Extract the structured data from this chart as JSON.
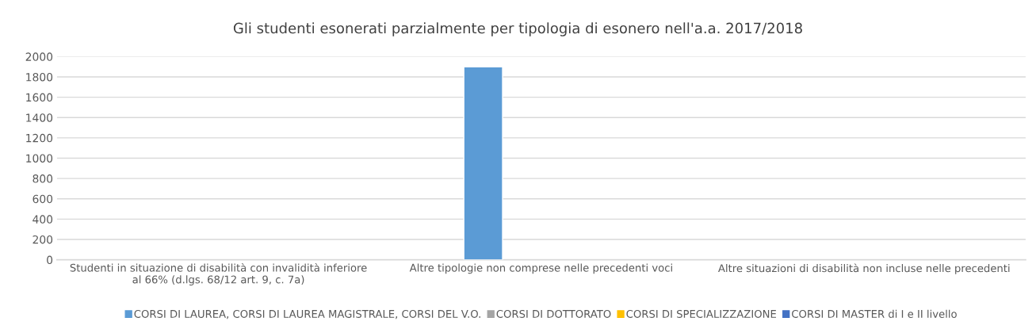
{
  "chart_data": {
    "type": "bar",
    "title": "Gli studenti esonerati parzialmente per tipologia di esonero nell'a.a. 2017/2018",
    "categories": [
      "Studenti in situazione di disabilità con invalidità inferiore\nal 66% (d.lgs. 68/12 art. 9, c. 7a)",
      "Altre tipologie non comprese nelle precedenti voci",
      "Altre situazioni di disabilità non incluse nelle precedenti"
    ],
    "series": [
      {
        "name": "CORSI DI LAUREA, CORSI DI LAUREA MAGISTRALE, CORSI DEL V.O.",
        "color": "#5b9bd5",
        "values": [
          null,
          1900,
          null
        ]
      },
      {
        "name": "CORSI DI DOTTORATO",
        "color": "#a5a5a5",
        "values": [
          null,
          null,
          null
        ]
      },
      {
        "name": "CORSI DI SPECIALIZZAZIONE",
        "color": "#ffc000",
        "values": [
          null,
          null,
          null
        ]
      },
      {
        "name": "CORSI DI MASTER di I e II livello",
        "color": "#4472c4",
        "values": [
          null,
          null,
          null
        ]
      }
    ],
    "ylim": [
      0,
      2000
    ],
    "yticks": [
      0,
      200,
      400,
      600,
      800,
      1000,
      1200,
      1400,
      1600,
      1800,
      2000
    ],
    "grid": "y",
    "legend": "bottom"
  }
}
